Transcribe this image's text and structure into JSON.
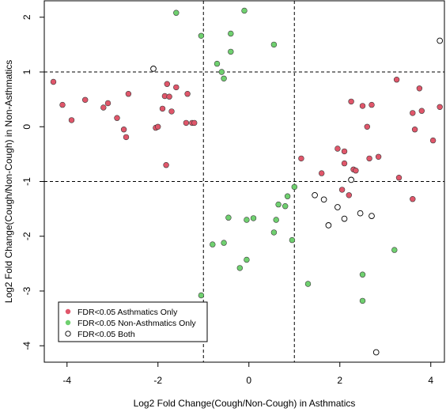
{
  "chart_data": {
    "type": "scatter",
    "title": "",
    "xlabel": "Log2 Fold Change(Cough/Non-Cough) in Asthmatics",
    "ylabel": "Log2 Fold Change(Cough/Non-Cough) in Non-Asthmatics",
    "xlim": [
      -4.5,
      4.3
    ],
    "ylim": [
      -4.3,
      2.3
    ],
    "xticks": [
      -4,
      -2,
      0,
      2,
      4
    ],
    "yticks": [
      -4,
      -3,
      -2,
      -1,
      0,
      1,
      2
    ],
    "xtick_labels": [
      "-4",
      "-2",
      "0",
      "2",
      "4"
    ],
    "ytick_labels": [
      "-4",
      "-3",
      "-2",
      "-1",
      "0",
      "1",
      "2"
    ],
    "grid": false,
    "legend_position": "bottom-left",
    "reference_lines": {
      "vertical": [
        -1,
        1
      ],
      "horizontal": [
        -1,
        1
      ],
      "style": "dashed",
      "color": "#000000"
    },
    "series": [
      {
        "name": "FDR<0.05 Asthmatics Only",
        "color": "#e0566a",
        "points": [
          [
            -4.3,
            0.82
          ],
          [
            -4.1,
            0.4
          ],
          [
            -3.9,
            0.12
          ],
          [
            -3.6,
            0.49
          ],
          [
            -3.2,
            0.35
          ],
          [
            -3.1,
            0.43
          ],
          [
            -2.9,
            0.16
          ],
          [
            -2.75,
            -0.05
          ],
          [
            -2.7,
            -0.19
          ],
          [
            -2.65,
            0.6
          ],
          [
            -2.05,
            -0.02
          ],
          [
            -2.0,
            0.0
          ],
          [
            -1.9,
            0.33
          ],
          [
            -1.85,
            0.56
          ],
          [
            -1.82,
            -0.7
          ],
          [
            -1.8,
            0.78
          ],
          [
            -1.75,
            0.55
          ],
          [
            -1.7,
            0.28
          ],
          [
            -1.6,
            0.72
          ],
          [
            -1.35,
            0.6
          ],
          [
            -1.38,
            0.07
          ],
          [
            -1.25,
            0.07
          ],
          [
            -1.2,
            0.07
          ],
          [
            1.15,
            -0.58
          ],
          [
            1.6,
            -0.85
          ],
          [
            1.95,
            -0.4
          ],
          [
            2.05,
            -1.15
          ],
          [
            2.1,
            -0.45
          ],
          [
            2.1,
            -0.67
          ],
          [
            2.2,
            -1.25
          ],
          [
            2.25,
            0.46
          ],
          [
            2.3,
            -0.78
          ],
          [
            2.35,
            -0.8
          ],
          [
            2.5,
            0.38
          ],
          [
            2.6,
            0.0
          ],
          [
            2.65,
            -0.58
          ],
          [
            2.7,
            0.4
          ],
          [
            2.85,
            -0.55
          ],
          [
            3.25,
            0.86
          ],
          [
            3.3,
            -0.93
          ],
          [
            3.6,
            -1.32
          ],
          [
            3.6,
            0.25
          ],
          [
            3.65,
            -0.05
          ],
          [
            3.75,
            0.7
          ],
          [
            3.8,
            0.29
          ],
          [
            4.05,
            -0.25
          ],
          [
            4.2,
            0.36
          ]
        ]
      },
      {
        "name": "FDR<0.05 Non-Asthmatics Only",
        "color": "#6fd06f",
        "points": [
          [
            -1.6,
            2.08
          ],
          [
            -1.05,
            1.66
          ],
          [
            -1.05,
            -3.08
          ],
          [
            -0.8,
            -2.15
          ],
          [
            -0.7,
            1.15
          ],
          [
            -0.6,
            1.0
          ],
          [
            -0.55,
            -2.12
          ],
          [
            -0.55,
            0.88
          ],
          [
            -0.45,
            -1.66
          ],
          [
            -0.4,
            1.37
          ],
          [
            -0.4,
            1.7
          ],
          [
            -0.2,
            -2.58
          ],
          [
            -0.1,
            2.12
          ],
          [
            -0.05,
            -1.7
          ],
          [
            -0.05,
            -2.43
          ],
          [
            0.1,
            -1.67
          ],
          [
            0.55,
            1.5
          ],
          [
            0.55,
            -1.93
          ],
          [
            0.6,
            -1.7
          ],
          [
            0.65,
            -1.42
          ],
          [
            0.8,
            -1.45
          ],
          [
            0.85,
            -1.27
          ],
          [
            0.95,
            -2.07
          ],
          [
            1.0,
            -1.1
          ],
          [
            1.3,
            -2.87
          ],
          [
            2.5,
            -2.7
          ],
          [
            2.5,
            -3.18
          ],
          [
            3.2,
            -2.25
          ]
        ]
      },
      {
        "name": "FDR<0.05 Both",
        "color": "#ffffff",
        "points": [
          [
            -2.1,
            1.06
          ],
          [
            1.45,
            -1.25
          ],
          [
            1.65,
            -1.33
          ],
          [
            1.75,
            -1.8
          ],
          [
            1.95,
            -1.47
          ],
          [
            2.1,
            -1.68
          ],
          [
            2.25,
            -0.97
          ],
          [
            2.45,
            -1.58
          ],
          [
            2.7,
            -1.63
          ],
          [
            2.8,
            -4.12
          ],
          [
            4.2,
            1.57
          ]
        ]
      }
    ]
  }
}
